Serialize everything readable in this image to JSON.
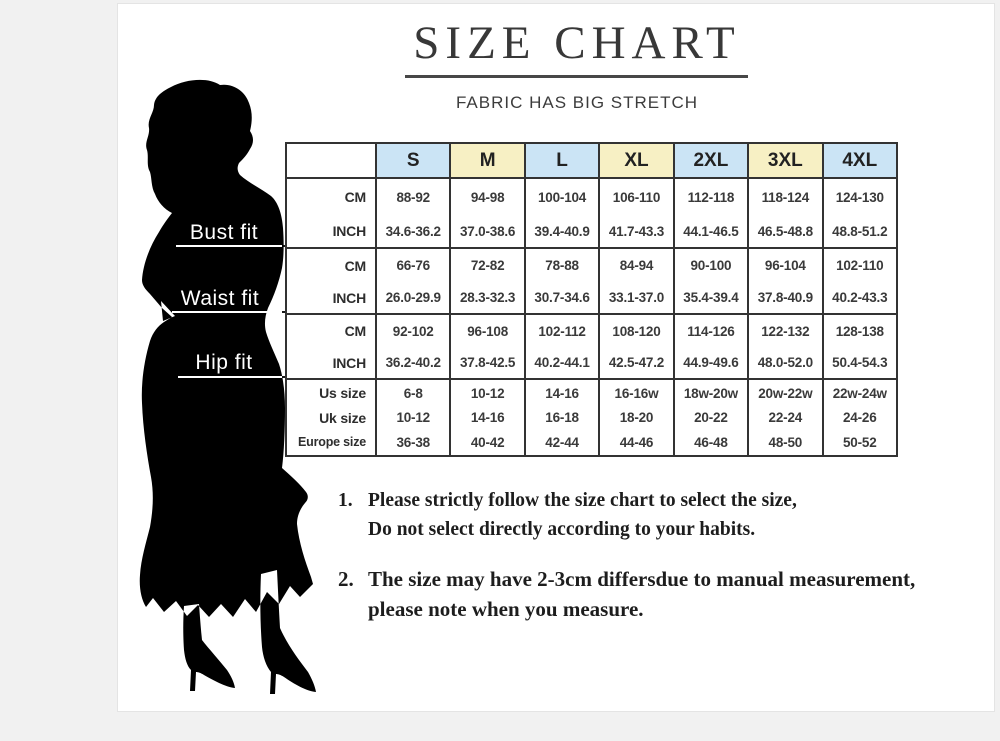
{
  "page_title": "SIZE CHART",
  "subtitle": "FABRIC HAS BIG STRETCH",
  "colors": {
    "header_blue": "#cbe4f5",
    "header_yellow": "#f7f0c4",
    "table_border": "#333333",
    "silhouette": "#000000",
    "page_bg": "#f1f1f1",
    "card_bg": "#ffffff"
  },
  "fit_labels": {
    "bust": "Bust fit",
    "waist": "Waist fit",
    "hip": "Hip fit"
  },
  "size_table": {
    "sizes": [
      "S",
      "M",
      "L",
      "XL",
      "2XL",
      "3XL",
      "4XL"
    ],
    "groups": [
      {
        "name": "bust",
        "rows": [
          {
            "label": "CM",
            "values": [
              "88-92",
              "94-98",
              "100-104",
              "106-110",
              "112-118",
              "118-124",
              "124-130"
            ]
          },
          {
            "label": "INCH",
            "values": [
              "34.6-36.2",
              "37.0-38.6",
              "39.4-40.9",
              "41.7-43.3",
              "44.1-46.5",
              "46.5-48.8",
              "48.8-51.2"
            ]
          }
        ]
      },
      {
        "name": "waist",
        "rows": [
          {
            "label": "CM",
            "values": [
              "66-76",
              "72-82",
              "78-88",
              "84-94",
              "90-100",
              "96-104",
              "102-110"
            ]
          },
          {
            "label": "INCH",
            "values": [
              "26.0-29.9",
              "28.3-32.3",
              "30.7-34.6",
              "33.1-37.0",
              "35.4-39.4",
              "37.8-40.9",
              "40.2-43.3"
            ]
          }
        ]
      },
      {
        "name": "hip",
        "rows": [
          {
            "label": "CM",
            "values": [
              "92-102",
              "96-108",
              "102-112",
              "108-120",
              "114-126",
              "122-132",
              "128-138"
            ]
          },
          {
            "label": "INCH",
            "values": [
              "36.2-40.2",
              "37.8-42.5",
              "40.2-44.1",
              "42.5-47.2",
              "44.9-49.6",
              "48.0-52.0",
              "50.4-54.3"
            ]
          }
        ]
      },
      {
        "name": "conversion",
        "rows": [
          {
            "label": "Us size",
            "values": [
              "6-8",
              "10-12",
              "14-16",
              "16-16w",
              "18w-20w",
              "20w-22w",
              "22w-24w"
            ]
          },
          {
            "label": "Uk size",
            "values": [
              "10-12",
              "14-16",
              "16-18",
              "18-20",
              "20-22",
              "22-24",
              "24-26"
            ]
          },
          {
            "label": "Europe size",
            "values": [
              "36-38",
              "40-42",
              "42-44",
              "44-46",
              "46-48",
              "48-50",
              "50-52"
            ]
          }
        ]
      }
    ]
  },
  "notes": [
    {
      "num": "1.",
      "line1": "Please strictly follow the size chart to select the size,",
      "line2": "Do not select directly according to your habits."
    },
    {
      "num": "2.",
      "line1": "The size may have 2-3cm differsdue to manual measurement,",
      "line2": "please note when you measure."
    }
  ]
}
